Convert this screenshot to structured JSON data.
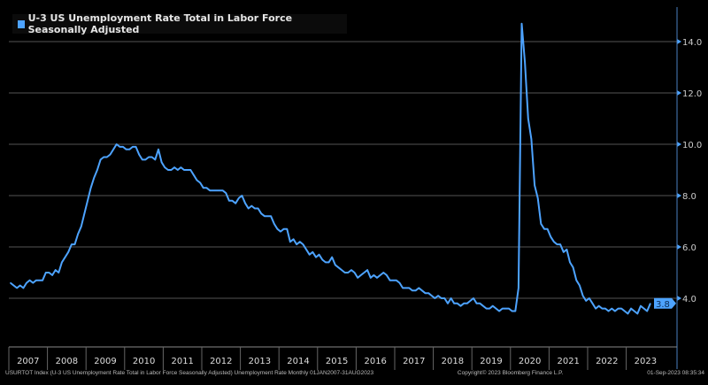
{
  "chart_data": {
    "type": "line",
    "title": "U-3 US Unemployment Rate Total in Labor Force Seasonally Adjusted",
    "xlabel": "",
    "ylabel": "",
    "ylim": [
      2.5,
      15.2
    ],
    "y_ticks": [
      "14.0",
      "12.0",
      "10.0",
      "8.0",
      "6.0",
      "4.0"
    ],
    "x_tick_labels": [
      "2007",
      "2008",
      "2009",
      "2010",
      "2011",
      "2012",
      "2013",
      "2014",
      "2015",
      "2016",
      "2017",
      "2018",
      "2019",
      "2020",
      "2021",
      "2022",
      "2023"
    ],
    "x_start": "Jan 2007",
    "frequency": "monthly",
    "last_value_label": "3.8",
    "grid": true,
    "legend_placement": "top-left",
    "series": [
      {
        "name": "U-3 US Unemployment Rate Total in Labor Force Seasonally Adjusted",
        "color": "#4da3ff",
        "values": [
          4.6,
          4.5,
          4.4,
          4.5,
          4.4,
          4.6,
          4.7,
          4.6,
          4.7,
          4.7,
          4.7,
          5.0,
          5.0,
          4.9,
          5.1,
          5.0,
          5.4,
          5.6,
          5.8,
          6.1,
          6.1,
          6.5,
          6.8,
          7.3,
          7.8,
          8.3,
          8.7,
          9.0,
          9.4,
          9.5,
          9.5,
          9.6,
          9.8,
          10.0,
          9.9,
          9.9,
          9.8,
          9.8,
          9.9,
          9.9,
          9.6,
          9.4,
          9.4,
          9.5,
          9.5,
          9.4,
          9.8,
          9.3,
          9.1,
          9.0,
          9.0,
          9.1,
          9.0,
          9.1,
          9.0,
          9.0,
          9.0,
          8.8,
          8.6,
          8.5,
          8.3,
          8.3,
          8.2,
          8.2,
          8.2,
          8.2,
          8.2,
          8.1,
          7.8,
          7.8,
          7.7,
          7.9,
          8.0,
          7.7,
          7.5,
          7.6,
          7.5,
          7.5,
          7.3,
          7.2,
          7.2,
          7.2,
          6.9,
          6.7,
          6.6,
          6.7,
          6.7,
          6.2,
          6.3,
          6.1,
          6.2,
          6.1,
          5.9,
          5.7,
          5.8,
          5.6,
          5.7,
          5.5,
          5.4,
          5.4,
          5.6,
          5.3,
          5.2,
          5.1,
          5.0,
          5.0,
          5.1,
          5.0,
          4.8,
          4.9,
          5.0,
          5.1,
          4.8,
          4.9,
          4.8,
          4.9,
          5.0,
          4.9,
          4.7,
          4.7,
          4.7,
          4.6,
          4.4,
          4.4,
          4.4,
          4.3,
          4.3,
          4.4,
          4.3,
          4.2,
          4.2,
          4.1,
          4.0,
          4.1,
          4.0,
          4.0,
          3.8,
          4.0,
          3.8,
          3.8,
          3.7,
          3.8,
          3.8,
          3.9,
          4.0,
          3.8,
          3.8,
          3.7,
          3.6,
          3.6,
          3.7,
          3.6,
          3.5,
          3.6,
          3.6,
          3.6,
          3.5,
          3.5,
          4.4,
          14.7,
          13.2,
          11.0,
          10.2,
          8.4,
          7.9,
          6.9,
          6.7,
          6.7,
          6.4,
          6.2,
          6.1,
          6.1,
          5.8,
          5.9,
          5.4,
          5.2,
          4.7,
          4.5,
          4.1,
          3.9,
          4.0,
          3.8,
          3.6,
          3.7,
          3.6,
          3.6,
          3.5,
          3.6,
          3.5,
          3.6,
          3.6,
          3.5,
          3.4,
          3.6,
          3.5,
          3.4,
          3.7,
          3.6,
          3.5,
          3.8
        ]
      }
    ]
  },
  "footer": {
    "source": "USURTOT Index (U-3 US Unemployment Rate Total in Labor Force Seasonally Adjusted) Unemployment Rate  Monthly 01JAN2007-31AUG2023",
    "copyright": "Copyright© 2023 Bloomberg Finance L.P.",
    "timestamp": "01-Sep-2023 08:35:34"
  }
}
